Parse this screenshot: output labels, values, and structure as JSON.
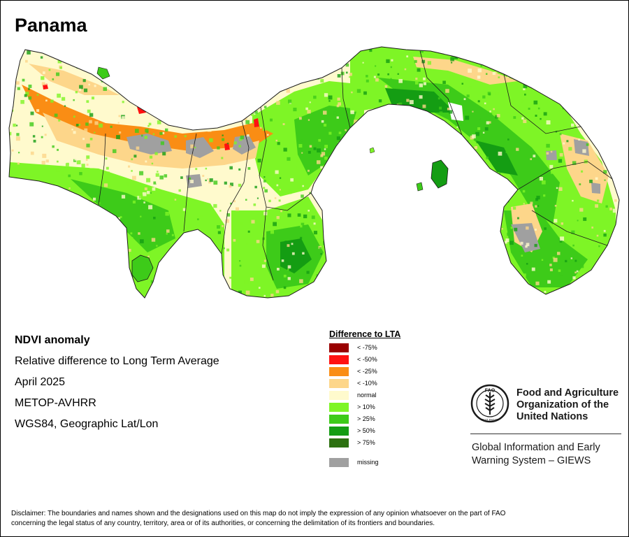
{
  "map": {
    "title": "Panama",
    "colors": {
      "land_normal": "#fffacd",
      "pos_10": "#7ef526",
      "pos_25": "#3dcb19",
      "pos_50": "#149d13",
      "pos_75": "#2d7111",
      "neg_10": "#fdd68a",
      "neg_25": "#fa8d14",
      "neg_50": "#ff1111",
      "neg_75": "#990000",
      "missing": "#a0a0a0",
      "water": "#ffffff",
      "boundary": "#1a1a1a"
    }
  },
  "info": {
    "title": "NDVI anomaly",
    "description": "Relative difference to Long Term Average",
    "date": "April 2025",
    "sensor": "METOP-AVHRR",
    "projection": "WGS84, Geographic Lat/Lon"
  },
  "legend": {
    "title": "Difference to LTA",
    "items": [
      {
        "label": "< -75%",
        "color": "#990000"
      },
      {
        "label": "< -50%",
        "color": "#ff1111"
      },
      {
        "label": "< -25%",
        "color": "#fa8d14"
      },
      {
        "label": "< -10%",
        "color": "#fdd68a"
      },
      {
        "label": "normal",
        "color": "#fffacd"
      },
      {
        "label": "> 10%",
        "color": "#7ef526"
      },
      {
        "label": "> 25%",
        "color": "#3dcb19"
      },
      {
        "label": "> 50%",
        "color": "#149d13"
      },
      {
        "label": "> 75%",
        "color": "#2d7111"
      }
    ],
    "missing": {
      "label": "missing",
      "color": "#a0a0a0"
    }
  },
  "logo": {
    "org_line1": "Food and Agriculture",
    "org_line2": "Organization of the",
    "org_line3": "United Nations",
    "emblem_text": "FIAT PANIS",
    "emblem_letters": "FAO",
    "program_line1": "Global Information and Early",
    "program_line2": "Warning System – GIEWS"
  },
  "disclaimer": {
    "line1": "Disclaimer: The boundaries and names shown and the designations used on this map do not imply the expression of any opinion whatsoever on the part of FAO",
    "line2": "concerning the legal status of any country, territory, area or of its authorities, or concerning the delimitation of its frontiers and boundaries."
  }
}
